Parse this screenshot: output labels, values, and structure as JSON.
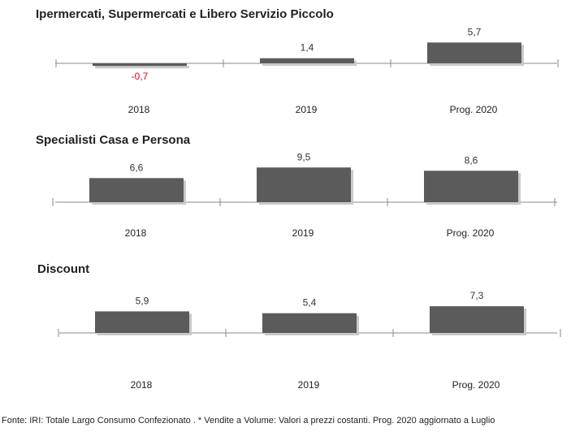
{
  "chart_data": [
    {
      "type": "bar",
      "title": "Ipermercati,  Supermercati e Libero Servizio Piccolo",
      "categories": [
        "2018",
        "2019",
        "Prog. 2020"
      ],
      "values": [
        -0.7,
        1.4,
        5.7
      ],
      "value_labels": [
        "-0,7",
        "1,4",
        "5,7"
      ],
      "negative_color": "#e0001b",
      "bar_color": "#5b5b5b"
    },
    {
      "type": "bar",
      "title": "Specialisti  Casa e Persona",
      "categories": [
        "2018",
        "2019",
        "Prog. 2020"
      ],
      "values": [
        6.6,
        9.5,
        8.6
      ],
      "value_labels": [
        "6,6",
        "9,5",
        "8,6"
      ],
      "bar_color": "#5b5b5b"
    },
    {
      "type": "bar",
      "title": "Discount",
      "categories": [
        "2018",
        "2019",
        "Prog. 2020"
      ],
      "values": [
        5.9,
        5.4,
        7.3
      ],
      "value_labels": [
        "5,9",
        "5,4",
        "7,3"
      ],
      "bar_color": "#5b5b5b"
    }
  ],
  "source_note": "Fonte: IRI: Totale Largo Consumo Confezionato . * Vendite a Volume: Valori a prezzi costanti.   Prog. 2020 aggiornato a Luglio"
}
